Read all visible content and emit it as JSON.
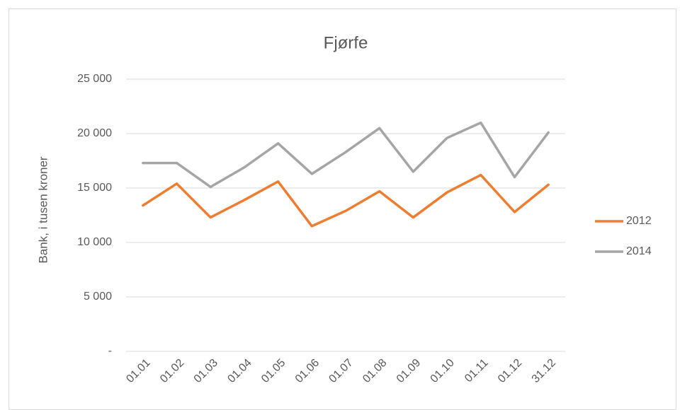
{
  "chart_data": {
    "type": "line",
    "title": "Fjørfe",
    "y_label": "Bank, i tusen kroner",
    "categories": [
      "01.01",
      "01.02",
      "01.03",
      "01.04",
      "01.05",
      "01.06",
      "01.07",
      "01.08",
      "01.09",
      "01.10",
      "01.11",
      "01.12",
      "31.12"
    ],
    "series": [
      {
        "name": "2012",
        "color": "#ed7d31",
        "values": [
          13400,
          15400,
          12300,
          13900,
          15600,
          11500,
          12900,
          14700,
          12300,
          14600,
          16200,
          12800,
          15300
        ]
      },
      {
        "name": "2014",
        "color": "#a5a5a5",
        "values": [
          17300,
          17300,
          15100,
          16900,
          19100,
          16300,
          18300,
          20500,
          16500,
          19600,
          21000,
          16000,
          20100
        ]
      }
    ],
    "ylim": [
      0,
      25000
    ],
    "yticks": [
      {
        "value": 0,
        "label": "-"
      },
      {
        "value": 5000,
        "label": "5 000"
      },
      {
        "value": 10000,
        "label": "10 000"
      },
      {
        "value": 15000,
        "label": "15 000"
      },
      {
        "value": 20000,
        "label": "20 000"
      },
      {
        "value": 25000,
        "label": "25 000"
      }
    ],
    "grid": true,
    "legend": "right"
  }
}
